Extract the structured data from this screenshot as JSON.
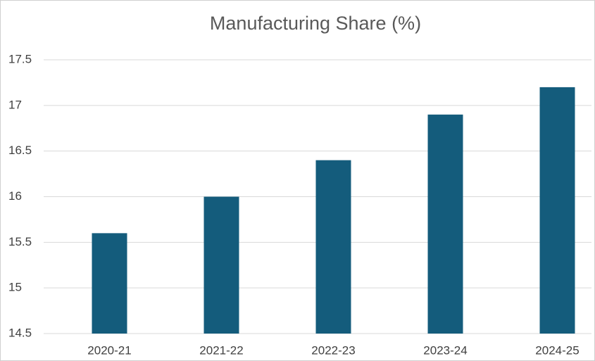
{
  "chart_data": {
    "type": "bar",
    "title": "Manufacturing Share (%)",
    "categories": [
      "2020-21",
      "2021-22",
      "2022-23",
      "2023-24",
      "2024-25"
    ],
    "values": [
      15.6,
      16,
      16.4,
      16.9,
      17.2
    ],
    "color": "#145c7c",
    "ylim": [
      14.5,
      17.5
    ],
    "yticks": [
      14.5,
      15,
      15.5,
      16,
      16.5,
      17,
      17.5
    ],
    "grid": true
  }
}
